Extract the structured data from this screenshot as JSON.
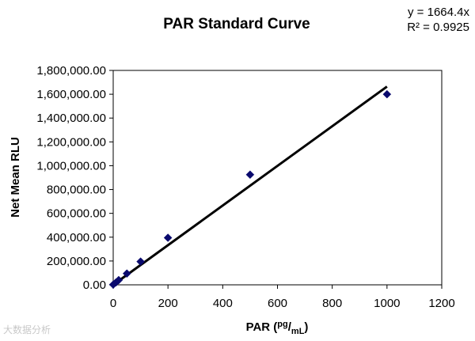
{
  "chart_data": {
    "type": "scatter",
    "title": "PAR Standard Curve",
    "xlabel": {
      "main": "PAR (",
      "num": "pg",
      "slash": "/",
      "den": "mL",
      "close": ")"
    },
    "ylabel": "Net Mean RLU",
    "xlim": [
      0,
      1200
    ],
    "ylim": [
      0,
      1800000
    ],
    "x_ticks": [
      0,
      200,
      400,
      600,
      800,
      1000,
      1200
    ],
    "x_tick_labels": [
      "0",
      "200",
      "400",
      "600",
      "800",
      "1000",
      "1200"
    ],
    "y_ticks": [
      0,
      200000,
      400000,
      600000,
      800000,
      1000000,
      1200000,
      1400000,
      1600000,
      1800000
    ],
    "y_tick_labels": [
      "0.00",
      "200,000.00",
      "400,000.00",
      "600,000.00",
      "800,000.00",
      "1,000,000.00",
      "1,200,000.00",
      "1,400,000.00",
      "1,600,000.00",
      "1,800,000.00"
    ],
    "grid": false,
    "series": [
      {
        "marker": "diamond",
        "color": "#0a0a6e",
        "x": [
          0,
          10,
          20,
          50,
          100,
          200,
          500,
          1000
        ],
        "y": [
          2000,
          20000,
          40000,
          95000,
          195000,
          395000,
          925000,
          1600000
        ]
      }
    ],
    "trendline": {
      "equation": "y = 1664.4x",
      "r_squared": "R² = 0.9925",
      "slope": 1664.4,
      "x_range": [
        0,
        1000
      ],
      "color": "#000000"
    }
  },
  "watermark": "大数据分析"
}
